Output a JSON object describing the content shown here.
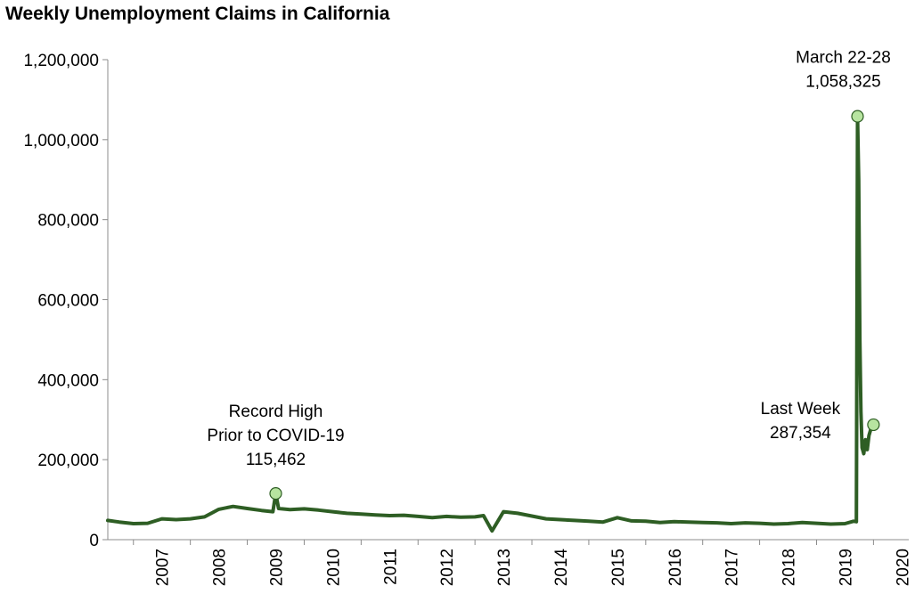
{
  "chart_data": {
    "type": "line",
    "title": "Weekly Unemployment Claims in California",
    "xlabel": "",
    "ylabel": "",
    "ylim": [
      0,
      1200000
    ],
    "yticks": [
      "0",
      "200,000",
      "400,000",
      "600,000",
      "800,000",
      "1,000,000",
      "1,200,000"
    ],
    "ytick_values": [
      0,
      200000,
      400000,
      600000,
      800000,
      1000000,
      1200000
    ],
    "xticks": [
      "2007",
      "2008",
      "2009",
      "2010",
      "2011",
      "2012",
      "2013",
      "2014",
      "2015",
      "2016",
      "2017",
      "2018",
      "2019",
      "2020"
    ],
    "xlim": [
      2006.55,
      2020.62
    ],
    "grid": false,
    "legend": "none",
    "series": [
      {
        "color": "#2e5e24",
        "x": [
          2006.55,
          2006.75,
          2007.0,
          2007.25,
          2007.5,
          2007.75,
          2008.0,
          2008.25,
          2008.5,
          2008.75,
          2009.0,
          2009.25,
          2009.45,
          2009.5,
          2009.55,
          2009.75,
          2010.0,
          2010.25,
          2010.5,
          2010.75,
          2011.0,
          2011.25,
          2011.5,
          2011.75,
          2012.0,
          2012.25,
          2012.5,
          2012.75,
          2013.0,
          2013.15,
          2013.3,
          2013.5,
          2013.75,
          2014.0,
          2014.25,
          2014.5,
          2014.75,
          2015.0,
          2015.25,
          2015.5,
          2015.75,
          2016.0,
          2016.25,
          2016.5,
          2016.75,
          2017.0,
          2017.25,
          2017.5,
          2017.75,
          2018.0,
          2018.25,
          2018.5,
          2018.75,
          2019.0,
          2019.25,
          2019.5,
          2019.65,
          2019.7,
          2019.72,
          2019.74,
          2019.76,
          2019.78,
          2019.8,
          2019.83,
          2019.86,
          2019.89,
          2019.92,
          2019.95,
          2020.0
        ],
        "values": [
          48000,
          44000,
          40000,
          41000,
          52000,
          50000,
          52000,
          57000,
          76000,
          83000,
          78000,
          73000,
          70000,
          115462,
          78000,
          75000,
          77000,
          74000,
          70000,
          66000,
          64000,
          62000,
          60000,
          61000,
          58000,
          55000,
          58000,
          56000,
          57000,
          60000,
          22000,
          70000,
          66000,
          59000,
          52000,
          50000,
          48000,
          46000,
          44000,
          55000,
          47000,
          46000,
          43000,
          45000,
          44000,
          43000,
          42000,
          40000,
          42000,
          41000,
          39000,
          40000,
          43000,
          41000,
          39000,
          40000,
          46000,
          45000,
          1058325,
          900000,
          500000,
          320000,
          230000,
          215000,
          250000,
          225000,
          260000,
          275000,
          287354
        ]
      }
    ],
    "annotations": [
      {
        "lines": [
          "Record High",
          "Prior to COVID-19",
          "115,462"
        ],
        "x": 2009.5,
        "y": 115462
      },
      {
        "lines": [
          "March 22-28",
          "1,058,325"
        ],
        "x": 2019.72,
        "y": 1058325
      },
      {
        "lines": [
          "Last Week",
          "287,354"
        ],
        "x": 2020.0,
        "y": 287354
      }
    ],
    "marker_color": "#b7e4a0"
  }
}
